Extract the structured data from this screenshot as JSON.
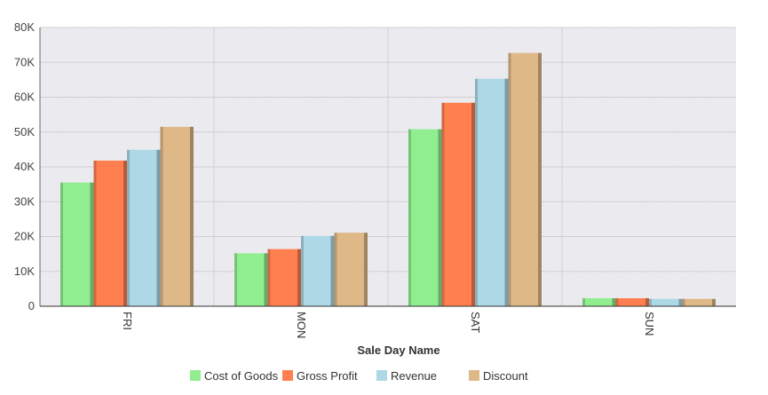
{
  "chart_data": {
    "type": "bar",
    "title": "",
    "xlabel": "Sale Day Name",
    "ylabel": "",
    "categories": [
      "FRI",
      "MON",
      "SAT",
      "SUN"
    ],
    "ylim": [
      0,
      80000
    ],
    "yticks": [
      0,
      10000,
      20000,
      30000,
      40000,
      50000,
      60000,
      70000,
      80000
    ],
    "ytick_labels": [
      "0",
      "10K",
      "20K",
      "30K",
      "40K",
      "50K",
      "60K",
      "70K",
      "80K"
    ],
    "grid": true,
    "legend_position": "bottom",
    "series": [
      {
        "name": "Cost of Goods",
        "color": "#90ee90",
        "values": [
          35500,
          15200,
          50800,
          2300
        ]
      },
      {
        "name": "Gross Profit",
        "color": "#ff7f50",
        "values": [
          41800,
          16400,
          58400,
          2300
        ]
      },
      {
        "name": "Revenue",
        "color": "#add8e6",
        "values": [
          44900,
          20200,
          65300,
          2100
        ]
      },
      {
        "name": "Discount",
        "color": "#deb887",
        "values": [
          51500,
          21100,
          72700,
          2100
        ]
      }
    ]
  }
}
